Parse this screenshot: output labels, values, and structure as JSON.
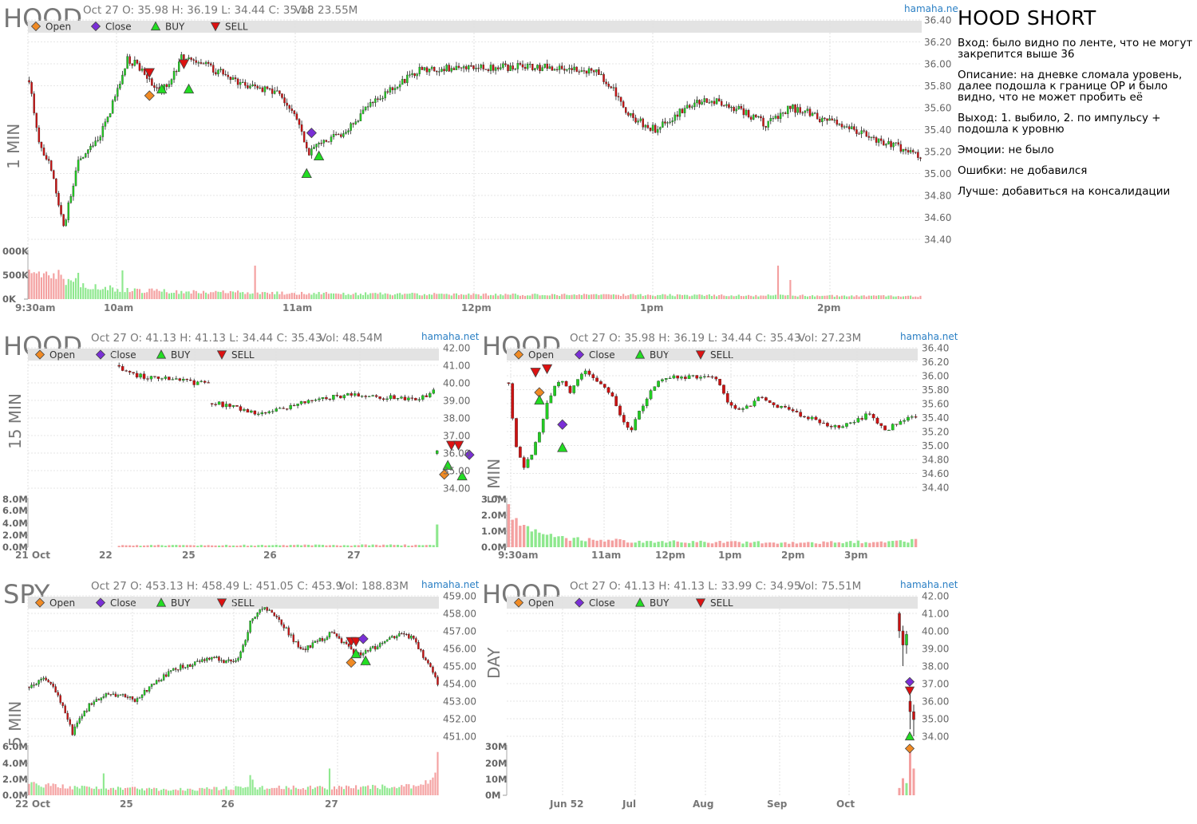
{
  "notes": {
    "title": "HOOD SHORT",
    "entry": "Вход: было видно по ленте, что не могут закрепится выше 36",
    "description": "Описание: на дневке сломала уровень, далее подошла к границе ОР и было видно, что не может пробить её",
    "exit": "Выход: 1. выбило, 2. по импульсу + подошла к уровню",
    "emotions": "Эмоции: не было",
    "mistakes": "Ошибки: не добавился",
    "better": "Лучше: добавиться на консалидации"
  },
  "legend": {
    "open": "Open",
    "close": "Close",
    "buy": "BUY",
    "sell": "SELL"
  },
  "colors": {
    "up": "#22cc22",
    "down": "#cc1111",
    "vol_up": "#8ee88e",
    "vol_down": "#f4a0a0",
    "open_marker": "#f08a24",
    "close_marker": "#7a2fd6",
    "buy_marker": "#22dd22",
    "sell_marker": "#dd1111",
    "watermark": "#2a7fc4",
    "legend_band": "#e3e3e3",
    "grid": "#dddddd"
  },
  "chart_data": [
    {
      "id": "p1",
      "type": "candlestick",
      "symbol": "HOOD",
      "timeframe": "1 MIN",
      "header": "Oct 27 O: 35.98 H: 36.19 L: 34.44 C: 35.18",
      "volume_label": "Vol: 23.55M",
      "watermark": "hamaha.net",
      "price_ticks": [
        "36.40",
        "36.20",
        "36.00",
        "35.80",
        "35.60",
        "35.40",
        "35.20",
        "35.00",
        "34.80",
        "34.60",
        "34.40"
      ],
      "ylim": [
        34.4,
        36.4
      ],
      "volume_ticks": [
        "000K",
        "500K",
        "0K"
      ],
      "x_labels": [
        "9:30am",
        "10am",
        "11am",
        "12pm",
        "1pm",
        "2pm"
      ],
      "anchors": [
        [
          0,
          35.85
        ],
        [
          4,
          35.3
        ],
        [
          9,
          35.05
        ],
        [
          14,
          34.5
        ],
        [
          20,
          35.1
        ],
        [
          28,
          35.3
        ],
        [
          36,
          35.75
        ],
        [
          40,
          36.05
        ],
        [
          46,
          35.95
        ],
        [
          51,
          35.75
        ],
        [
          57,
          35.8
        ],
        [
          62,
          36.05
        ],
        [
          70,
          36.0
        ],
        [
          80,
          35.9
        ],
        [
          90,
          35.78
        ],
        [
          100,
          35.75
        ],
        [
          108,
          35.55
        ],
        [
          114,
          35.2
        ],
        [
          120,
          35.3
        ],
        [
          126,
          35.35
        ],
        [
          132,
          35.45
        ],
        [
          140,
          35.65
        ],
        [
          150,
          35.82
        ],
        [
          160,
          35.95
        ],
        [
          180,
          35.97
        ],
        [
          200,
          35.97
        ],
        [
          220,
          35.96
        ],
        [
          232,
          35.93
        ],
        [
          238,
          35.75
        ],
        [
          243,
          35.55
        ],
        [
          250,
          35.45
        ],
        [
          256,
          35.4
        ],
        [
          264,
          35.55
        ],
        [
          272,
          35.65
        ],
        [
          282,
          35.65
        ],
        [
          292,
          35.55
        ],
        [
          300,
          35.45
        ],
        [
          310,
          35.6
        ],
        [
          318,
          35.55
        ],
        [
          324,
          35.48
        ],
        [
          330,
          35.45
        ],
        [
          338,
          35.38
        ],
        [
          346,
          35.3
        ],
        [
          352,
          35.27
        ],
        [
          358,
          35.2
        ],
        [
          363,
          35.17
        ]
      ],
      "volume_profile": [
        [
          0,
          0.9
        ],
        [
          5,
          0.6
        ],
        [
          10,
          0.8
        ],
        [
          15,
          0.5
        ],
        [
          25,
          0.35
        ],
        [
          40,
          0.25
        ],
        [
          60,
          0.2
        ],
        [
          120,
          0.15
        ],
        [
          200,
          0.12
        ],
        [
          300,
          0.1
        ],
        [
          363,
          0.08
        ]
      ],
      "volume_spikes": [
        [
          20,
          0.55
        ],
        [
          38,
          0.6
        ],
        [
          92,
          0.7
        ],
        [
          305,
          0.7
        ],
        [
          310,
          0.4
        ]
      ],
      "markers": [
        {
          "kind": "open",
          "i": 49,
          "price": 35.71
        },
        {
          "kind": "sell",
          "i": 49,
          "price": 35.92
        },
        {
          "kind": "buy",
          "i": 54,
          "price": 35.77
        },
        {
          "kind": "sell",
          "i": 63,
          "price": 36.0
        },
        {
          "kind": "buy",
          "i": 65,
          "price": 35.77
        },
        {
          "kind": "close",
          "i": 115,
          "price": 35.37
        },
        {
          "kind": "buy",
          "i": 113,
          "price": 35.0
        },
        {
          "kind": "buy",
          "i": 118,
          "price": 35.16
        }
      ]
    },
    {
      "id": "p2",
      "type": "candlestick",
      "symbol": "HOOD",
      "timeframe": "15 MIN",
      "header": "Oct 27 O: 41.13 H: 41.13 L: 34.44 C: 35.43",
      "volume_label": "Vol: 48.54M",
      "watermark": "hamaha.net",
      "price_ticks": [
        "42.00",
        "41.00",
        "40.00",
        "39.00",
        "38.00",
        "37.00",
        "36.00",
        "35.00",
        "34.00"
      ],
      "ylim": [
        34.0,
        42.0
      ],
      "volume_ticks": [
        "8.0M",
        "6.0M",
        "4.0M",
        "2.0M",
        "0.0M"
      ],
      "x_labels": [
        "21 Oct",
        "22",
        "25",
        "26",
        "27"
      ],
      "anchors": [
        [
          0,
          41.0
        ],
        [
          3,
          40.5
        ],
        [
          8,
          40.35
        ],
        [
          15,
          40.2
        ],
        [
          20,
          40.05
        ],
        [
          25,
          39.9
        ],
        [
          26,
          38.9
        ],
        [
          32,
          38.6
        ],
        [
          36,
          38.4
        ],
        [
          40,
          38.3
        ],
        [
          46,
          38.6
        ],
        [
          52,
          38.9
        ],
        [
          58,
          39.1
        ],
        [
          62,
          39.25
        ],
        [
          66,
          39.3
        ],
        [
          72,
          39.2
        ],
        [
          80,
          39.1
        ],
        [
          86,
          39.2
        ],
        [
          88,
          39.5
        ],
        [
          89,
          36.0
        ],
        [
          92,
          35.3
        ],
        [
          95,
          35.8
        ],
        [
          98,
          35.9
        ],
        [
          102,
          35.6
        ],
        [
          106,
          35.4
        ],
        [
          110,
          35.35
        ],
        [
          114,
          35.4
        ]
      ],
      "gap_after": [
        25,
        88
      ],
      "first_index": 0,
      "total_slots": 115,
      "start_offset": 25,
      "volume_profile": [
        [
          0,
          0.05
        ],
        [
          88,
          0.06
        ],
        [
          89,
          0.75
        ],
        [
          92,
          0.35
        ],
        [
          96,
          0.15
        ],
        [
          114,
          0.1
        ]
      ],
      "volume_spikes": [],
      "markers": [
        {
          "kind": "open",
          "i": 91,
          "price": 34.78
        },
        {
          "kind": "buy",
          "i": 92,
          "price": 35.3
        },
        {
          "kind": "sell",
          "i": 93,
          "price": 36.45
        },
        {
          "kind": "sell",
          "i": 95,
          "price": 36.45
        },
        {
          "kind": "close",
          "i": 98,
          "price": 35.9
        },
        {
          "kind": "buy",
          "i": 96,
          "price": 34.7
        }
      ]
    },
    {
      "id": "p3",
      "type": "candlestick",
      "symbol": "HOOD",
      "timeframe": "5 MIN",
      "header": "Oct 27 O: 35.98 H: 36.19 L: 34.44 C: 35.43",
      "volume_label": "Vol: 27.23M",
      "watermark": "hamaha.net",
      "price_ticks": [
        "36.40",
        "36.20",
        "36.00",
        "35.80",
        "35.60",
        "35.40",
        "35.20",
        "35.00",
        "34.80",
        "34.60",
        "34.40"
      ],
      "ylim": [
        34.4,
        36.4
      ],
      "volume_ticks": [
        "3.0M",
        "2.0M",
        "1.0M",
        "0.0M"
      ],
      "x_labels": [
        "9:30am",
        "11am",
        "12pm",
        "1pm",
        "2pm",
        "3pm"
      ],
      "anchors": [
        [
          0,
          35.9
        ],
        [
          1,
          35.4
        ],
        [
          2,
          34.95
        ],
        [
          4,
          34.7
        ],
        [
          6,
          34.85
        ],
        [
          8,
          35.2
        ],
        [
          10,
          35.6
        ],
        [
          12,
          35.85
        ],
        [
          14,
          35.9
        ],
        [
          16,
          35.75
        ],
        [
          18,
          35.95
        ],
        [
          20,
          36.05
        ],
        [
          22,
          36.0
        ],
        [
          24,
          35.85
        ],
        [
          26,
          35.75
        ],
        [
          28,
          35.6
        ],
        [
          30,
          35.3
        ],
        [
          32,
          35.25
        ],
        [
          34,
          35.5
        ],
        [
          36,
          35.7
        ],
        [
          38,
          35.85
        ],
        [
          40,
          35.95
        ],
        [
          44,
          35.98
        ],
        [
          50,
          35.97
        ],
        [
          54,
          35.95
        ],
        [
          56,
          35.75
        ],
        [
          58,
          35.55
        ],
        [
          60,
          35.5
        ],
        [
          62,
          35.55
        ],
        [
          64,
          35.65
        ],
        [
          66,
          35.7
        ],
        [
          70,
          35.55
        ],
        [
          74,
          35.5
        ],
        [
          76,
          35.45
        ],
        [
          80,
          35.35
        ],
        [
          84,
          35.25
        ],
        [
          88,
          35.3
        ],
        [
          92,
          35.4
        ],
        [
          94,
          35.45
        ],
        [
          96,
          35.35
        ],
        [
          98,
          35.2
        ],
        [
          100,
          35.3
        ],
        [
          104,
          35.4
        ],
        [
          106,
          35.4
        ]
      ],
      "volume_profile": [
        [
          0,
          1.0
        ],
        [
          3,
          0.55
        ],
        [
          6,
          0.4
        ],
        [
          10,
          0.3
        ],
        [
          20,
          0.2
        ],
        [
          40,
          0.15
        ],
        [
          80,
          0.12
        ],
        [
          106,
          0.18
        ]
      ],
      "volume_spikes": [],
      "markers": [
        {
          "kind": "sell",
          "i": 7,
          "price": 36.05
        },
        {
          "kind": "open",
          "i": 8,
          "price": 35.76
        },
        {
          "kind": "buy",
          "i": 8,
          "price": 35.65
        },
        {
          "kind": "sell",
          "i": 10,
          "price": 36.1
        },
        {
          "kind": "close",
          "i": 14,
          "price": 35.3
        },
        {
          "kind": "buy",
          "i": 14,
          "price": 34.97
        }
      ]
    },
    {
      "id": "p4",
      "type": "candlestick",
      "symbol": "SPY",
      "timeframe": "5 MIN",
      "header": "Oct 27 O: 453.13 H: 458.49 L: 451.05 C: 453.9",
      "volume_label": "Vol: 188.83M",
      "watermark": "hamaha.net",
      "price_ticks": [
        "459.00",
        "458.00",
        "457.00",
        "456.00",
        "455.00",
        "454.00",
        "453.00",
        "452.00",
        "451.00"
      ],
      "ylim": [
        451.0,
        459.0
      ],
      "volume_ticks": [
        "6.0M",
        "4.0M",
        "2.0M",
        "0.0M"
      ],
      "x_labels": [
        "22 Oct",
        "25",
        "26",
        "27"
      ],
      "anchors": [
        [
          0,
          453.8
        ],
        [
          6,
          454.3
        ],
        [
          10,
          453.8
        ],
        [
          14,
          452.8
        ],
        [
          18,
          451.2
        ],
        [
          22,
          452.2
        ],
        [
          26,
          452.9
        ],
        [
          32,
          453.3
        ],
        [
          38,
          453.4
        ],
        [
          44,
          453.1
        ],
        [
          50,
          453.8
        ],
        [
          56,
          454.4
        ],
        [
          62,
          454.9
        ],
        [
          70,
          455.2
        ],
        [
          76,
          455.5
        ],
        [
          84,
          455.2
        ],
        [
          88,
          455.7
        ],
        [
          92,
          457.5
        ],
        [
          96,
          458.2
        ],
        [
          100,
          458.3
        ],
        [
          104,
          457.6
        ],
        [
          110,
          456.5
        ],
        [
          114,
          455.9
        ],
        [
          120,
          456.4
        ],
        [
          126,
          456.9
        ],
        [
          132,
          456.2
        ],
        [
          136,
          455.6
        ],
        [
          140,
          455.8
        ],
        [
          146,
          456.2
        ],
        [
          150,
          456.5
        ],
        [
          156,
          456.9
        ],
        [
          160,
          456.5
        ],
        [
          164,
          455.6
        ],
        [
          168,
          454.6
        ],
        [
          170,
          454.0
        ]
      ],
      "volume_profile": [
        [
          0,
          0.3
        ],
        [
          20,
          0.2
        ],
        [
          40,
          0.18
        ],
        [
          60,
          0.15
        ],
        [
          91,
          0.2
        ],
        [
          92,
          0.45
        ],
        [
          95,
          0.2
        ],
        [
          130,
          0.2
        ],
        [
          164,
          0.25
        ],
        [
          168,
          0.5
        ],
        [
          170,
          0.9
        ]
      ],
      "volume_spikes": [
        [
          31,
          0.45
        ],
        [
          125,
          0.55
        ]
      ],
      "markers": [
        {
          "kind": "sell",
          "i": 134,
          "price": 456.4
        },
        {
          "kind": "open",
          "i": 134,
          "price": 455.2
        },
        {
          "kind": "buy",
          "i": 136,
          "price": 455.7
        },
        {
          "kind": "sell",
          "i": 136,
          "price": 456.4
        },
        {
          "kind": "close",
          "i": 139,
          "price": 456.55
        },
        {
          "kind": "buy",
          "i": 140,
          "price": 455.3
        }
      ]
    },
    {
      "id": "p5",
      "type": "candlestick",
      "symbol": "HOOD",
      "timeframe": "DAY",
      "header": "Oct 27 O: 41.13 H: 41.13 L: 33.99 C: 34.95",
      "volume_label": "Vol: 75.51M",
      "watermark": "hamaha.net",
      "price_ticks": [
        "42.00",
        "41.00",
        "40.00",
        "39.00",
        "38.00",
        "37.00",
        "36.00",
        "35.00",
        "34.00"
      ],
      "ylim": [
        34.0,
        42.0
      ],
      "volume_ticks": [
        "30M",
        "20M",
        "10M",
        "0M"
      ],
      "x_labels": [
        "Jun 52",
        "Jul",
        "Aug",
        "Sep",
        "Oct"
      ],
      "markers": [
        {
          "kind": "close",
          "price": 37.1
        },
        {
          "kind": "sell",
          "price": 36.6
        },
        {
          "kind": "buy",
          "price": 34.0
        },
        {
          "kind": "open",
          "price": 33.3
        }
      ]
    }
  ]
}
